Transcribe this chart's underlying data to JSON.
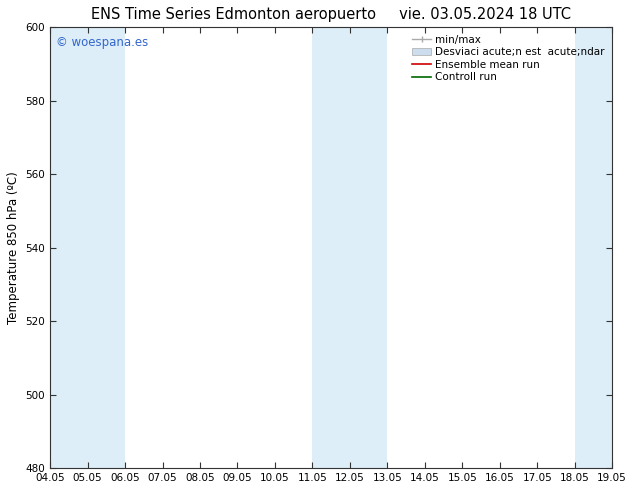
{
  "title_left": "ENS Time Series Edmonton aeropuerto",
  "title_right": "vie. 03.05.2024 18 UTC",
  "ylabel": "Temperature 850 hPa (ºC)",
  "ylim": [
    480,
    600
  ],
  "yticks": [
    480,
    500,
    520,
    540,
    560,
    580,
    600
  ],
  "xtick_labels": [
    "04.05",
    "05.05",
    "06.05",
    "07.05",
    "08.05",
    "09.05",
    "10.05",
    "11.05",
    "12.05",
    "13.05",
    "14.05",
    "15.05",
    "16.05",
    "17.05",
    "18.05",
    "19.05"
  ],
  "shaded_x_indices": [
    0,
    1,
    7,
    8,
    14
  ],
  "shaded_color": "#ddeef8",
  "watermark_text": "© woespana.es",
  "watermark_color": "#3366cc",
  "bg_color": "#ffffff",
  "plot_bg_color": "#ffffff",
  "spine_color": "#333333",
  "title_fontsize": 10.5,
  "tick_fontsize": 7.5,
  "ylabel_fontsize": 8.5,
  "legend_fontsize": 7.5,
  "minmax_color": "#aaaaaa",
  "std_color": "#ccddee",
  "ensemble_color": "#cc0000",
  "control_color": "#006600",
  "legend_label_minmax": "min/max",
  "legend_label_std": "Desviaci acute;n est  acute;ndar",
  "legend_label_ensemble": "Ensemble mean run",
  "legend_label_control": "Controll run"
}
